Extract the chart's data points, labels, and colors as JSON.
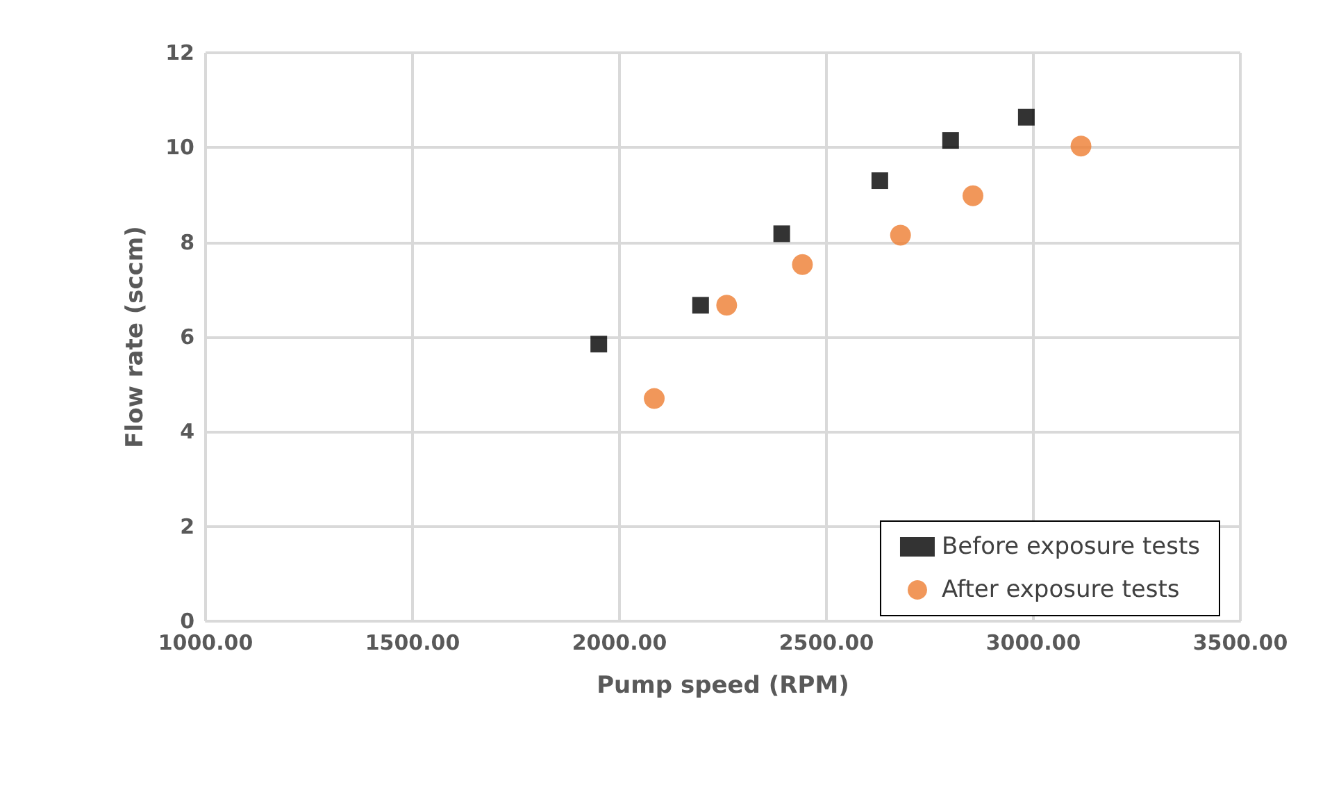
{
  "chart_data": {
    "type": "scatter",
    "xlabel": "Pump speed (RPM)",
    "ylabel": "Flow rate (sccm)",
    "xlim": [
      1000,
      3500
    ],
    "xticks": [
      {
        "value": 1000,
        "label": "1000.00"
      },
      {
        "value": 1500,
        "label": "1500.00"
      },
      {
        "value": 2000,
        "label": "2000.00"
      },
      {
        "value": 2500,
        "label": "2500.00"
      },
      {
        "value": 3000,
        "label": "3000.00"
      },
      {
        "value": 3500,
        "label": "3500.00"
      }
    ],
    "ylim": [
      0,
      12
    ],
    "yticks": [
      0,
      2,
      4,
      6,
      8,
      10,
      12
    ],
    "grid": true,
    "legend": "bottom right",
    "series": [
      {
        "name": "Before exposure tests",
        "color": "#000000",
        "marker": "square",
        "x": [
          1950,
          2196,
          2392,
          2629,
          2800,
          2983
        ],
        "values": [
          5.85,
          6.67,
          8.18,
          9.3,
          10.15,
          10.64
        ]
      },
      {
        "name": "After exposure tests",
        "color": "#ed7d31",
        "marker": "circle",
        "x": [
          2084,
          2259,
          2442,
          2679,
          2854,
          3115
        ],
        "values": [
          4.7,
          6.67,
          7.53,
          8.15,
          8.98,
          10.03
        ]
      }
    ]
  }
}
